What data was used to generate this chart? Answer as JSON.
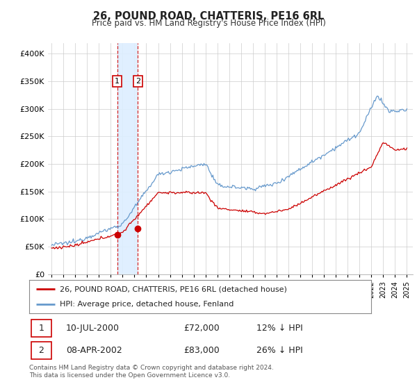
{
  "title": "26, POUND ROAD, CHATTERIS, PE16 6RL",
  "subtitle": "Price paid vs. HM Land Registry's House Price Index (HPI)",
  "legend_line1": "26, POUND ROAD, CHATTERIS, PE16 6RL (detached house)",
  "legend_line2": "HPI: Average price, detached house, Fenland",
  "transaction1_date": "10-JUL-2000",
  "transaction1_price": "£72,000",
  "transaction1_hpi": "12% ↓ HPI",
  "transaction2_date": "08-APR-2002",
  "transaction2_price": "£83,000",
  "transaction2_hpi": "26% ↓ HPI",
  "footer": "Contains HM Land Registry data © Crown copyright and database right 2024.\nThis data is licensed under the Open Government Licence v3.0.",
  "red_color": "#cc0000",
  "blue_color": "#6699cc",
  "shade_color": "#ddeeff",
  "ylim": [
    0,
    420000
  ],
  "yticks": [
    0,
    50000,
    100000,
    150000,
    200000,
    250000,
    300000,
    350000,
    400000
  ],
  "background_color": "#ffffff",
  "grid_color": "#cccccc",
  "t1_year": 2000.54,
  "t2_year": 2002.29,
  "t1_price": 72000,
  "t2_price": 83000
}
